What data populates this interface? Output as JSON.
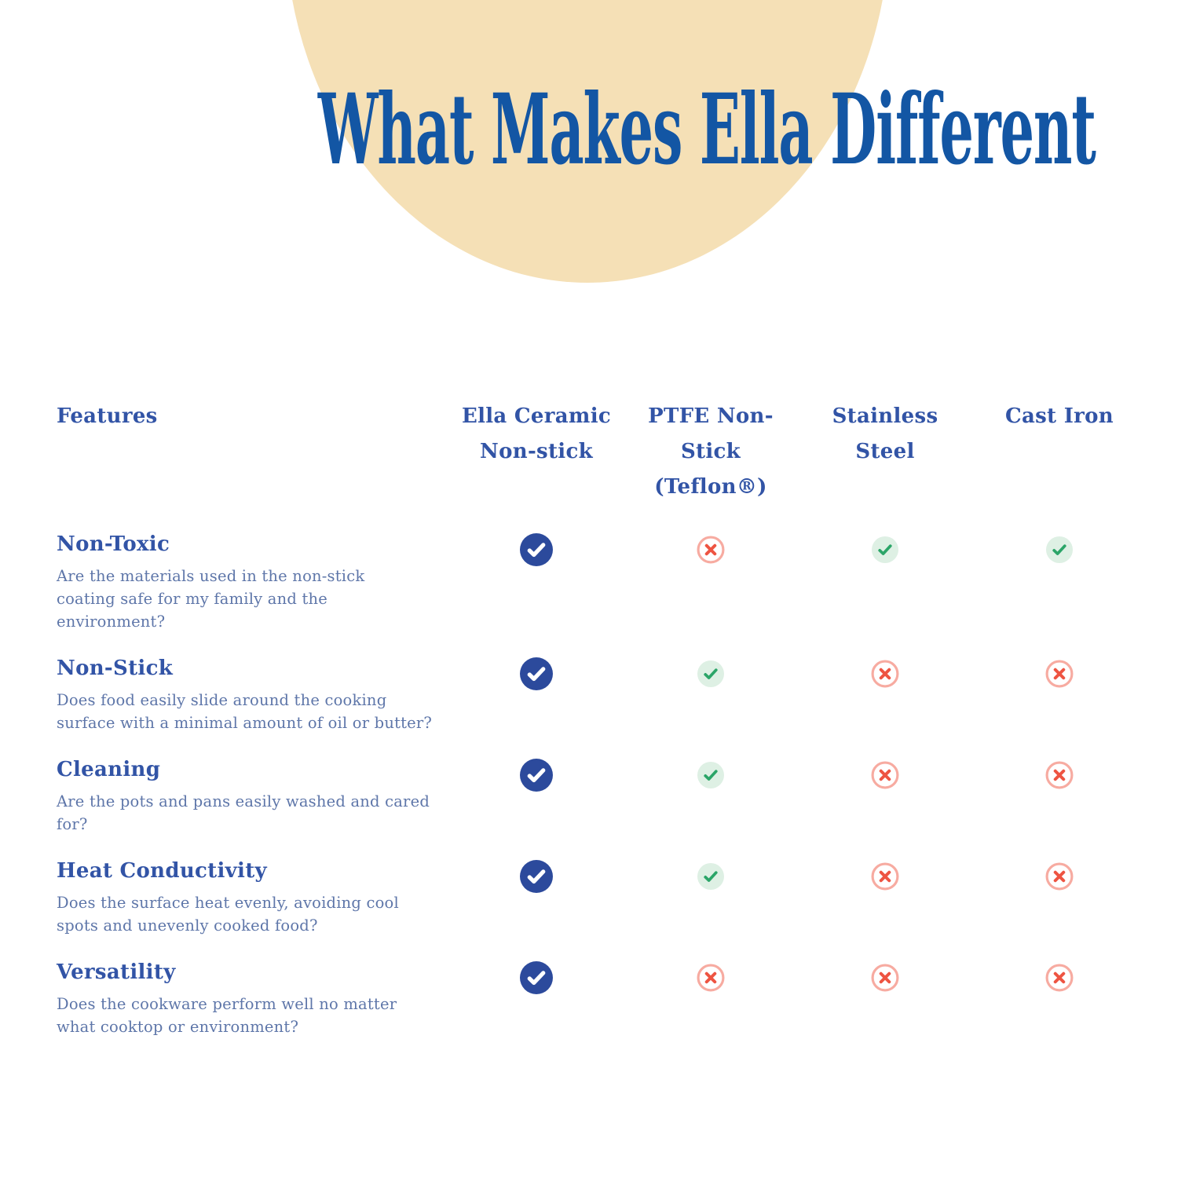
{
  "title": "What Makes Ella Different",
  "table": {
    "features_header": "Features",
    "columns": [
      "Ella Ceramic\nNon-stick",
      "PTFE Non-\nStick\n(Teflon®)",
      "Stainless\nSteel",
      "Cast Iron"
    ],
    "rows": [
      {
        "title": "Non-Toxic",
        "description": "Are the materials used in the non-stick\ncoating safe for my family and the\nenvironment?",
        "values": [
          "blue-check",
          "red-x",
          "green-check",
          "green-check"
        ]
      },
      {
        "title": "Non-Stick",
        "description": "Does food easily slide around the cooking\nsurface with a minimal amount of oil or butter?",
        "values": [
          "blue-check",
          "green-check",
          "red-x",
          "red-x"
        ]
      },
      {
        "title": "Cleaning",
        "description": "Are the pots and pans easily washed and cared\nfor?",
        "values": [
          "blue-check",
          "green-check",
          "red-x",
          "red-x"
        ]
      },
      {
        "title": "Heat Conductivity",
        "description": "Does the surface heat evenly, avoiding cool\nspots and unevenly cooked food?",
        "values": [
          "blue-check",
          "green-check",
          "red-x",
          "red-x"
        ]
      },
      {
        "title": "Versatility",
        "description": "Does the cookware perform well no matter\nwhat cooktop or environment?",
        "values": [
          "blue-check",
          "red-x",
          "red-x",
          "red-x"
        ]
      }
    ]
  },
  "icons": {
    "blue-check": "filled blue circle with white checkmark",
    "green-check": "pale green circle with green checkmark",
    "red-x": "salmon ring circle with red x"
  },
  "colors": {
    "background": "#FFFFFF",
    "title-blue": "#1356A4",
    "heading-blue": "#3254A6",
    "body-blue": "#5E76A9",
    "beige": "#F5E0B6",
    "blue-check-bg": "#2C4A9C",
    "check-white": "#FFFFFF",
    "green-bg": "#DEF0E4",
    "green-fg": "#2BA568",
    "red-ring": "#F7ABA1",
    "red-fg": "#EE5442"
  }
}
